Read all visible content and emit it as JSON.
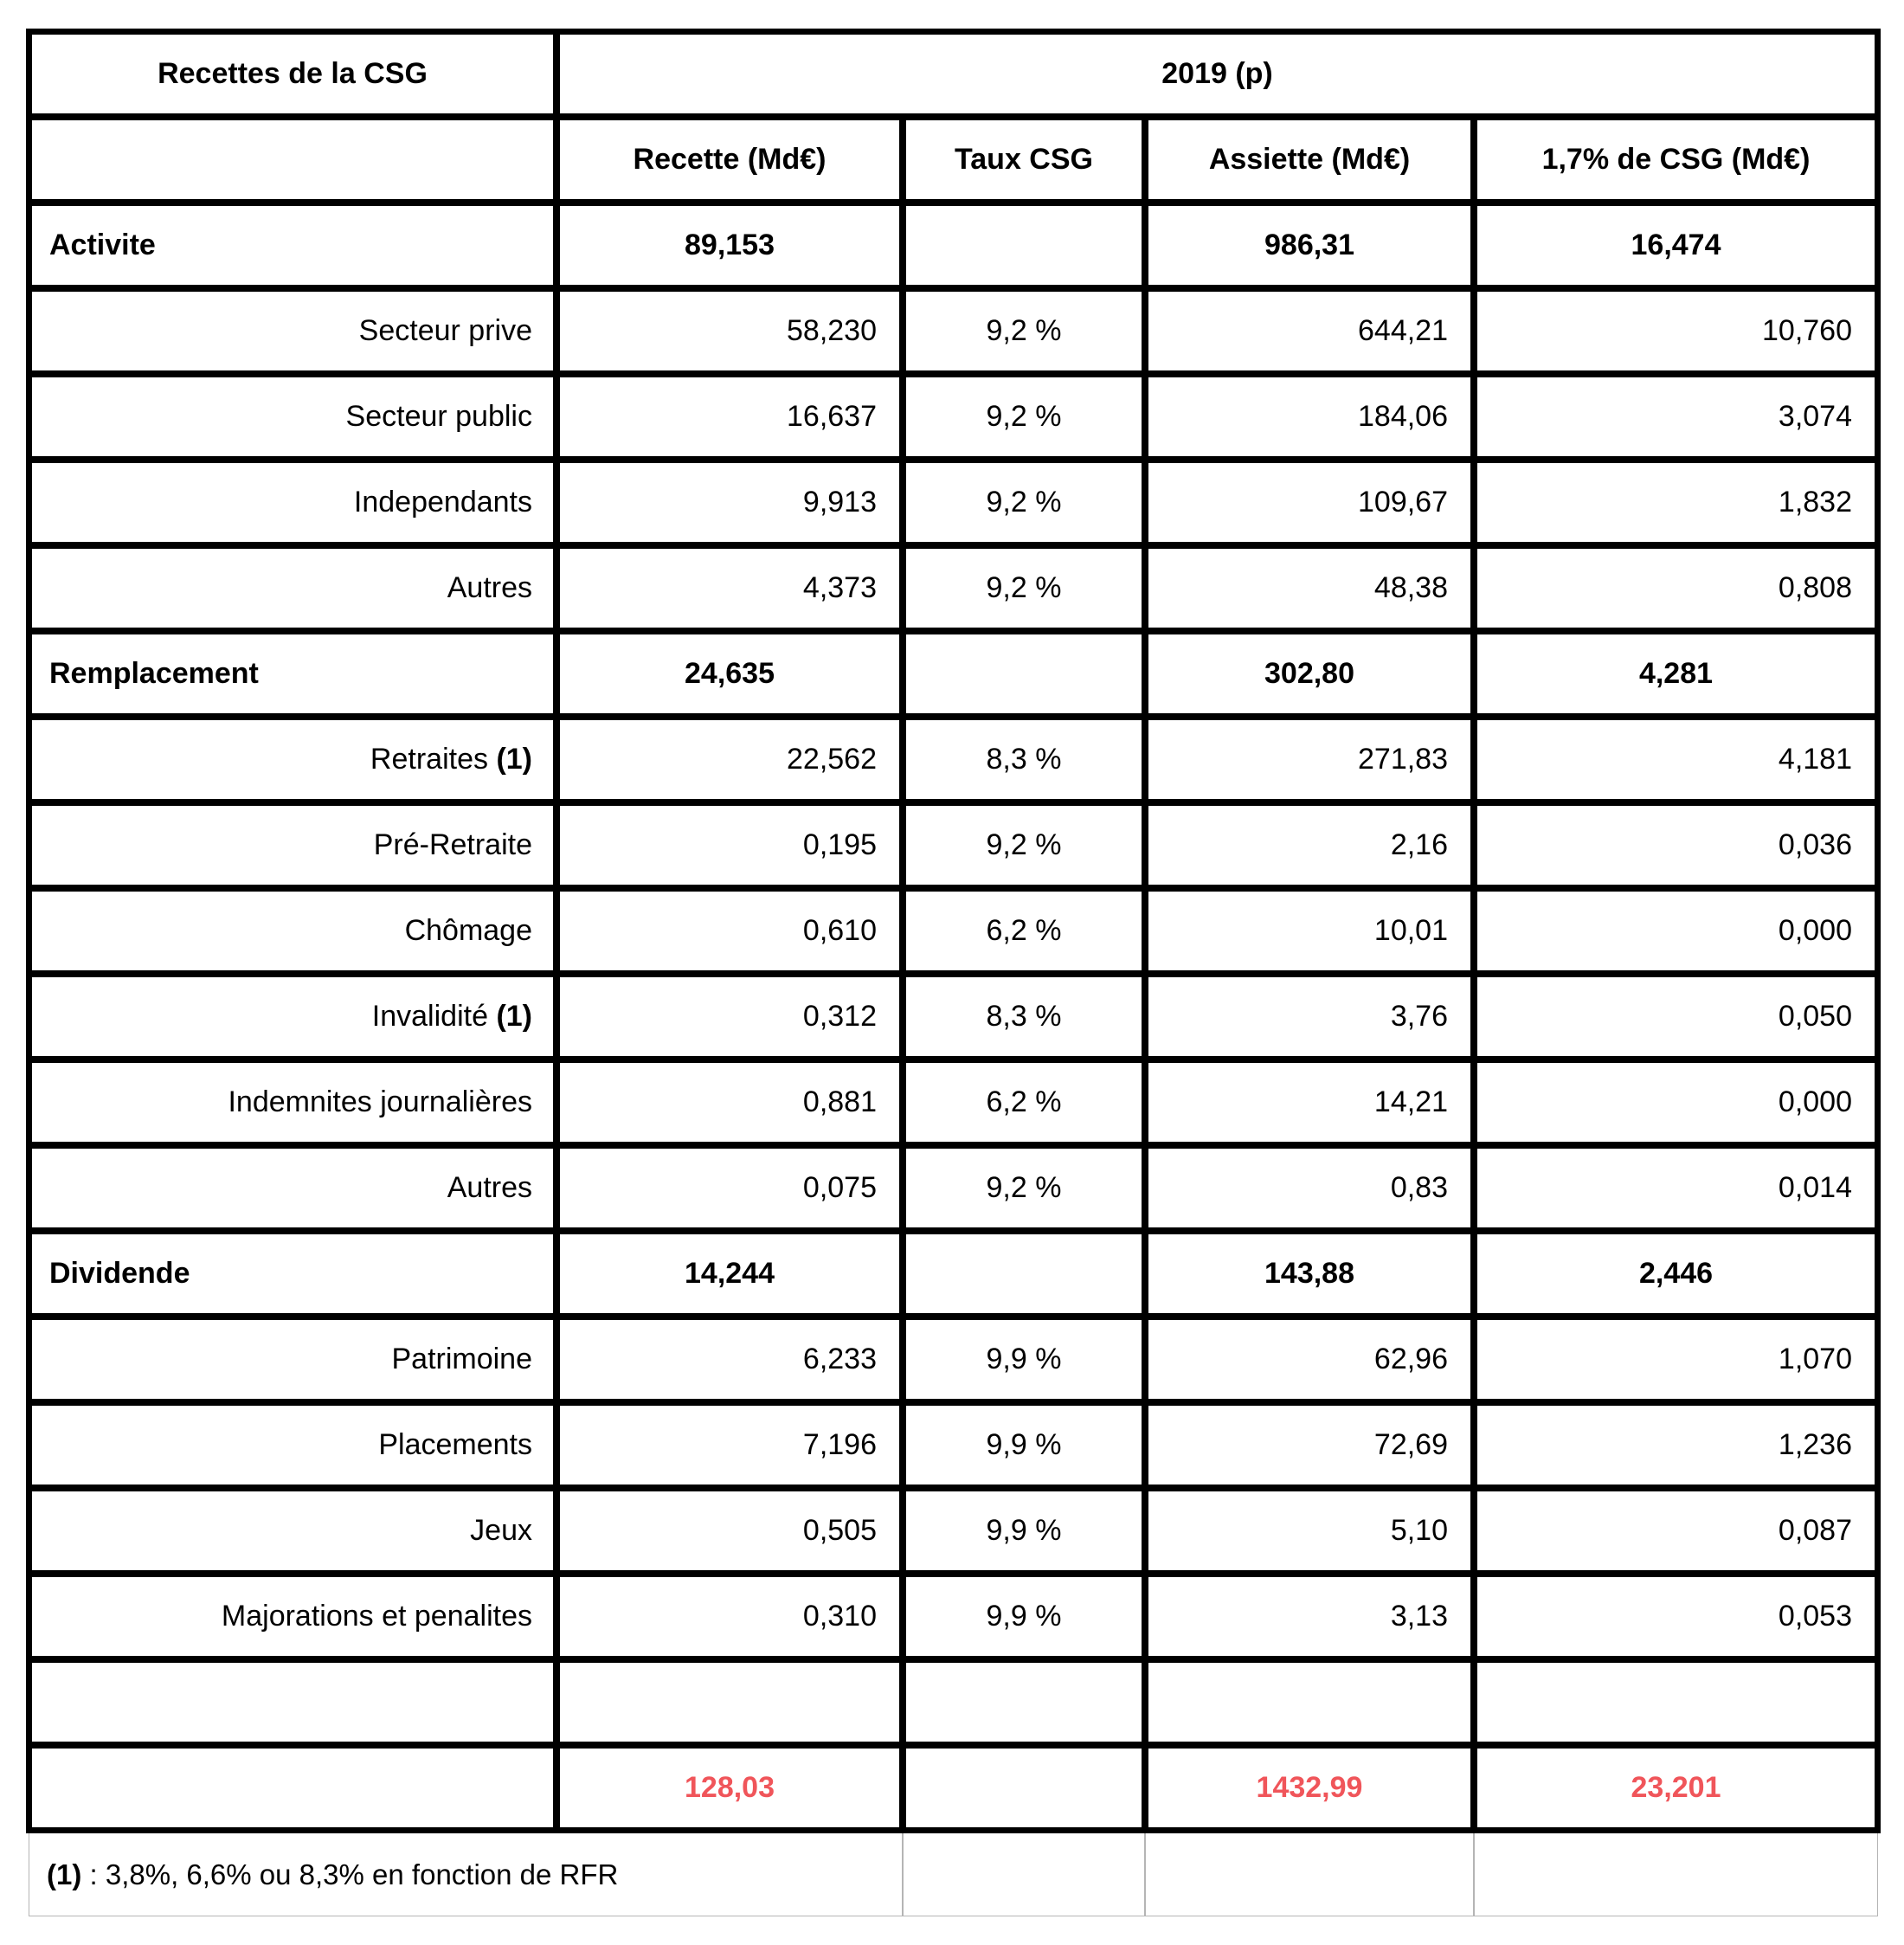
{
  "table": {
    "title": "Recettes de la CSG",
    "year_header": "2019 (p)",
    "columns": [
      "Recette (Md€)",
      "Taux CSG",
      "Assiette (Md€)",
      "1,7% de CSG (Md€)"
    ],
    "rows": [
      {
        "type": "section",
        "label": "Activite",
        "recette": "89,153",
        "taux": "",
        "assiette": "986,31",
        "csg17": "16,474"
      },
      {
        "type": "detail",
        "label": "Secteur prive",
        "recette": "58,230",
        "taux": "9,2 %",
        "assiette": "644,21",
        "csg17": "10,760"
      },
      {
        "type": "detail",
        "label": "Secteur public",
        "recette": "16,637",
        "taux": "9,2 %",
        "assiette": "184,06",
        "csg17": "3,074"
      },
      {
        "type": "detail",
        "label": "Independants",
        "recette": "9,913",
        "taux": "9,2 %",
        "assiette": "109,67",
        "csg17": "1,832"
      },
      {
        "type": "detail",
        "label": "Autres",
        "recette": "4,373",
        "taux": "9,2 %",
        "assiette": "48,38",
        "csg17": "0,808"
      },
      {
        "type": "section",
        "label": "Remplacement",
        "recette": "24,635",
        "taux": "",
        "assiette": "302,80",
        "csg17": "4,281"
      },
      {
        "type": "detail",
        "label": "Retraites",
        "label_note": "(1)",
        "recette": "22,562",
        "taux": "8,3 %",
        "assiette": "271,83",
        "csg17": "4,181"
      },
      {
        "type": "detail",
        "label": "Pré-Retraite",
        "recette": "0,195",
        "taux": "9,2 %",
        "assiette": "2,16",
        "csg17": "0,036"
      },
      {
        "type": "detail",
        "label": "Chômage",
        "recette": "0,610",
        "taux": "6,2 %",
        "assiette": "10,01",
        "csg17": "0,000"
      },
      {
        "type": "detail",
        "label": "Invalidité",
        "label_note": "(1)",
        "recette": "0,312",
        "taux": "8,3 %",
        "assiette": "3,76",
        "csg17": "0,050"
      },
      {
        "type": "detail",
        "label": "Indemnites journalières",
        "recette": "0,881",
        "taux": "6,2 %",
        "assiette": "14,21",
        "csg17": "0,000"
      },
      {
        "type": "detail",
        "label": "Autres",
        "recette": "0,075",
        "taux": "9,2 %",
        "assiette": "0,83",
        "csg17": "0,014"
      },
      {
        "type": "section",
        "label": "Dividende",
        "recette": "14,244",
        "taux": "",
        "assiette": "143,88",
        "csg17": "2,446"
      },
      {
        "type": "detail",
        "label": "Patrimoine",
        "recette": "6,233",
        "taux": "9,9 %",
        "assiette": "62,96",
        "csg17": "1,070"
      },
      {
        "type": "detail",
        "label": "Placements",
        "recette": "7,196",
        "taux": "9,9 %",
        "assiette": "72,69",
        "csg17": "1,236"
      },
      {
        "type": "detail",
        "label": "Jeux",
        "recette": "0,505",
        "taux": "9,9 %",
        "assiette": "5,10",
        "csg17": "0,087"
      },
      {
        "type": "detail",
        "label": "Majorations et penalites",
        "recette": "0,310",
        "taux": "9,9 %",
        "assiette": "3,13",
        "csg17": "0,053"
      },
      {
        "type": "empty",
        "label": "",
        "recette": "",
        "taux": "",
        "assiette": "",
        "csg17": ""
      },
      {
        "type": "total",
        "label": "",
        "recette": "128,03",
        "taux": "",
        "assiette": "1432,99",
        "csg17": "23,201"
      }
    ],
    "footnote": {
      "marker": "(1)",
      "text": " : 3,8%, 6,6% ou 8,3% en fonction de RFR"
    }
  },
  "colors": {
    "border": "#000000",
    "total_text": "#f0555a",
    "footnote_border": "#b5b5b5"
  }
}
